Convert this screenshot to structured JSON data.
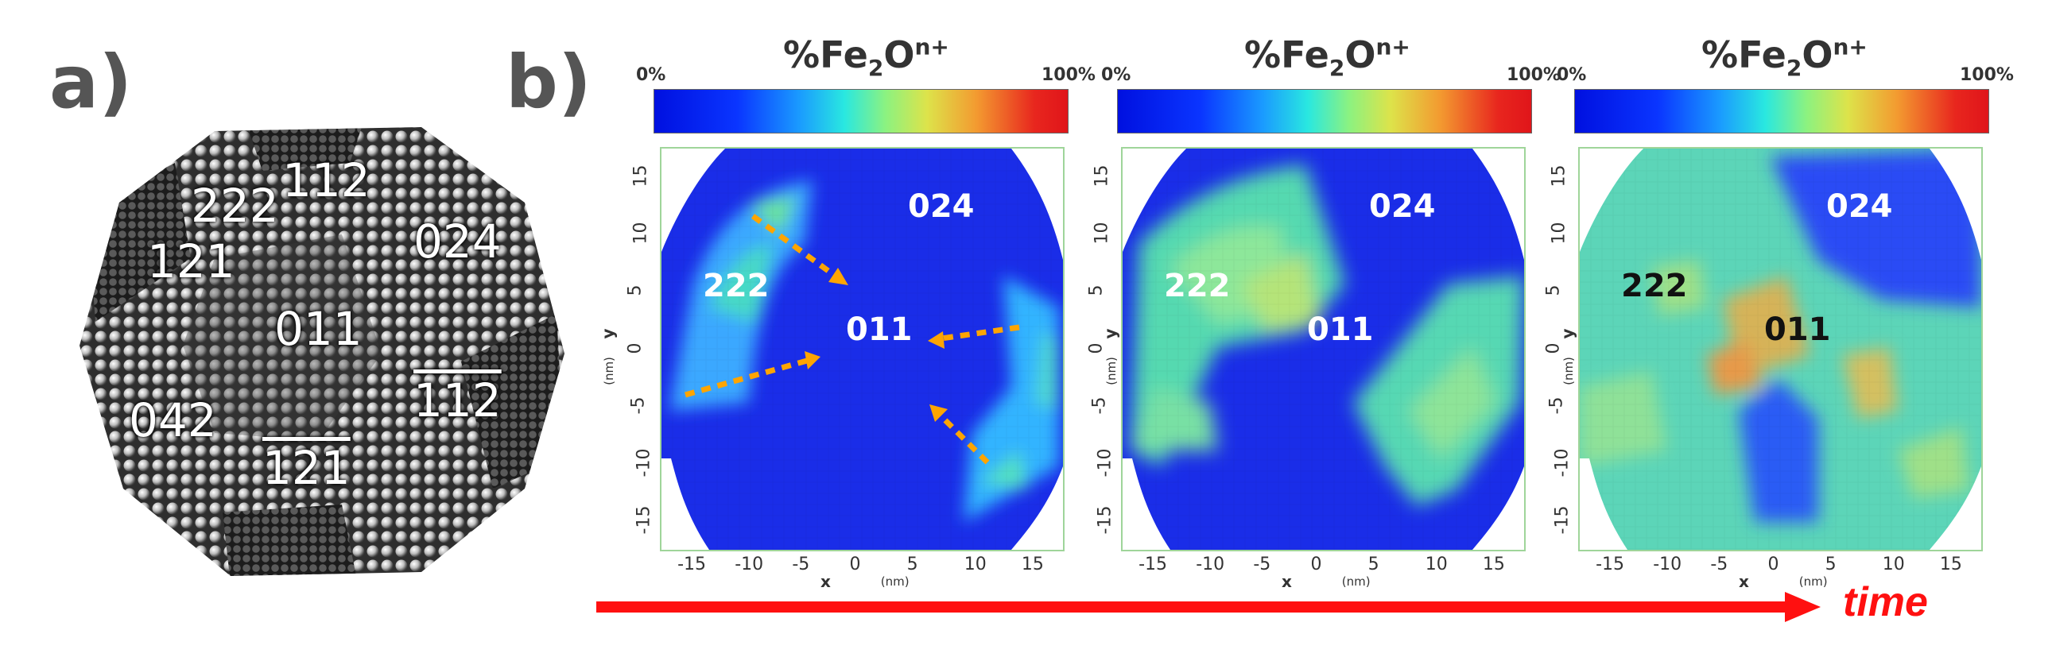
{
  "panel_a": {
    "label": "a)",
    "facets": [
      "222",
      "112",
      "121",
      "024",
      "011",
      "042",
      "112",
      "121"
    ]
  },
  "panel_b": {
    "label": "b)",
    "colorbar": {
      "title_main": "%Fe",
      "title_sub": "2",
      "title_mid": "O",
      "title_sup": "n+",
      "min_label": "0%",
      "max_label": "100%"
    },
    "maps": [
      {
        "labels": [
          "024",
          "222",
          "011"
        ],
        "label_colors": [
          "#ffffff",
          "#ffffff",
          "#ffffff"
        ]
      },
      {
        "labels": [
          "024",
          "222",
          "011"
        ],
        "label_colors": [
          "#ffffff",
          "#ffffff",
          "#ffffff"
        ]
      },
      {
        "labels": [
          "024",
          "222",
          "011"
        ],
        "label_colors": [
          "#ffffff",
          "#111111",
          "#111111"
        ]
      }
    ],
    "x_ticks": [
      "-15",
      "-10",
      "-5",
      "0",
      "5",
      "10",
      "15"
    ],
    "y_ticks": [
      "15",
      "10",
      "5",
      "0",
      "-5",
      "-10",
      "-15"
    ],
    "x_axis_label": "x",
    "y_axis_label": "y",
    "unit": "(nm)",
    "time_label": "time",
    "colors": {
      "arrow": "#ffa500",
      "time_arrow": "#ff1010",
      "map_background": "#1a2de8"
    }
  }
}
